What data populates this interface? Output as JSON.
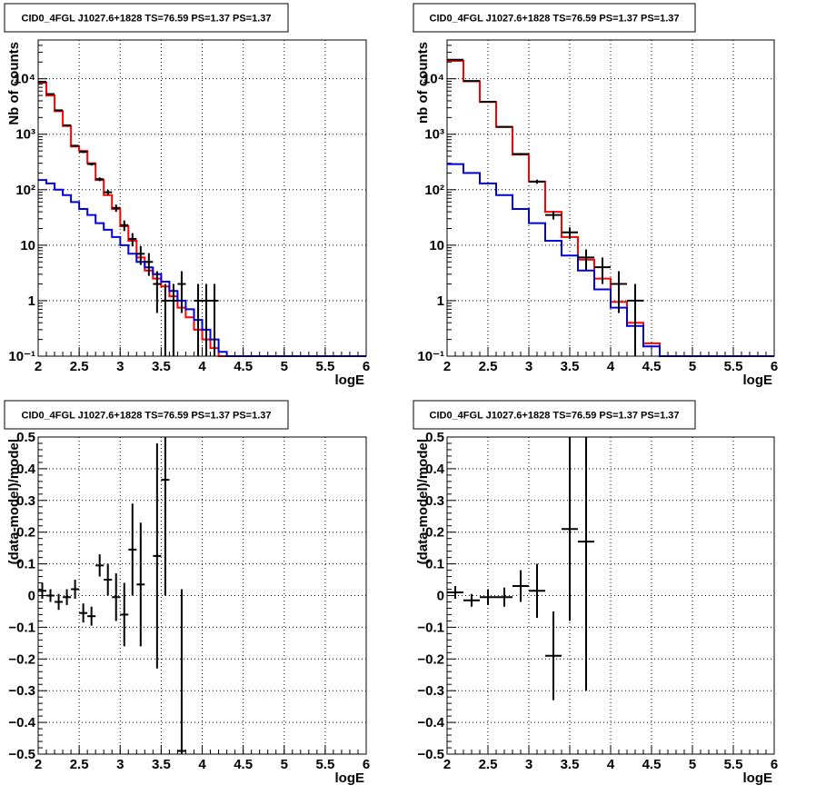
{
  "colors": {
    "total_model": "#ff0000",
    "background_model": "#0000dd",
    "data": "#000000"
  },
  "chart_data": [
    {
      "id": "spectrum-left",
      "type": "line",
      "title": "CID0_4FGL J1027.6+1828 TS=76.59 PS=1.37 PS=1.37",
      "xlabel": "logE",
      "ylabel": "Nb of counts",
      "xlim": [
        2,
        6
      ],
      "ylim": [
        0.1,
        50000
      ],
      "yscale": "log",
      "grid": true,
      "x_ticks": [
        "2",
        "2.5",
        "3",
        "3.5",
        "4",
        "4.5",
        "5",
        "5.5",
        "6"
      ],
      "y_ticks": [
        "10⁻¹",
        "1",
        "10",
        "10²",
        "10³",
        "10⁴"
      ],
      "bin_edges": [
        2.0,
        2.1,
        2.2,
        2.3,
        2.4,
        2.5,
        2.6,
        2.7,
        2.8,
        2.9,
        3.0,
        3.1,
        3.2,
        3.3,
        3.4,
        3.5,
        3.6,
        3.7,
        3.8,
        3.9,
        4.0,
        4.1,
        4.2,
        4.3,
        4.4,
        4.5,
        4.6,
        4.7,
        4.8,
        4.9,
        5.0,
        5.1,
        5.2,
        5.3,
        5.4,
        5.5,
        5.6,
        5.7,
        5.8,
        5.9,
        6.0
      ],
      "series": [
        {
          "key": "total_model",
          "values": [
            8500,
            5000,
            2600,
            1400,
            600,
            500,
            300,
            150,
            80,
            45,
            22,
            12,
            6,
            3.5,
            2.5,
            1.8,
            1.2,
            0.75,
            0.5,
            0.3,
            0.2,
            0.14,
            0.1,
            0.1,
            0.1,
            0.1,
            0.1,
            0.1,
            0.1,
            0.1,
            0.1,
            0.1,
            0.1,
            0.1,
            0.1,
            0.1,
            0.1,
            0.1,
            0.1,
            0.1
          ]
        },
        {
          "key": "background_model",
          "values": [
            150,
            130,
            100,
            80,
            60,
            45,
            35,
            25,
            19,
            14,
            10,
            7,
            5,
            4,
            3,
            2.2,
            1.5,
            1,
            0.7,
            0.45,
            0.3,
            0.2,
            0.12,
            0.1,
            0.1,
            0.1,
            0.1,
            0.1,
            0.1,
            0.1,
            0.1,
            0.1,
            0.1,
            0.1,
            0.1,
            0.1,
            0.1,
            0.1,
            0.1,
            0.1
          ]
        }
      ],
      "points": [
        {
          "x": 2.05,
          "y": 8800,
          "lo": 8600,
          "hi": 9000
        },
        {
          "x": 2.15,
          "y": 5300,
          "lo": 5200,
          "hi": 5400
        },
        {
          "x": 2.25,
          "y": 2700,
          "lo": 2650,
          "hi": 2750
        },
        {
          "x": 2.35,
          "y": 1450,
          "lo": 1410,
          "hi": 1490
        },
        {
          "x": 2.45,
          "y": 620,
          "lo": 595,
          "hi": 645
        },
        {
          "x": 2.55,
          "y": 480,
          "lo": 458,
          "hi": 502
        },
        {
          "x": 2.65,
          "y": 290,
          "lo": 273,
          "hi": 307
        },
        {
          "x": 2.75,
          "y": 155,
          "lo": 143,
          "hi": 167
        },
        {
          "x": 2.85,
          "y": 90,
          "lo": 81,
          "hi": 99
        },
        {
          "x": 2.95,
          "y": 47,
          "lo": 40,
          "hi": 54
        },
        {
          "x": 3.05,
          "y": 23,
          "lo": 18,
          "hi": 28
        },
        {
          "x": 3.15,
          "y": 13,
          "lo": 9.5,
          "hi": 16.5
        },
        {
          "x": 3.25,
          "y": 7,
          "lo": 4.4,
          "hi": 9.6
        },
        {
          "x": 3.35,
          "y": 5,
          "lo": 2.8,
          "hi": 7.2
        },
        {
          "x": 3.45,
          "y": 2,
          "lo": 0.6,
          "hi": 3.4
        },
        {
          "x": 3.55,
          "y": 1,
          "lo": 0.1,
          "hi": 2
        },
        {
          "x": 3.65,
          "y": 1,
          "lo": 0.1,
          "hi": 2
        },
        {
          "x": 3.75,
          "y": 2,
          "lo": 0.6,
          "hi": 3.4
        },
        {
          "x": 3.95,
          "y": 1,
          "lo": 0.1,
          "hi": 2
        },
        {
          "x": 4.05,
          "y": 1,
          "lo": 0.1,
          "hi": 2
        },
        {
          "x": 4.15,
          "y": 1,
          "lo": 0.1,
          "hi": 2
        }
      ]
    },
    {
      "id": "spectrum-right",
      "type": "line",
      "title": "CID0_4FGL J1027.6+1828 TS=76.59 PS=1.37 PS=1.37",
      "xlabel": "logE",
      "ylabel": "nb of counts",
      "xlim": [
        2,
        6
      ],
      "ylim": [
        0.1,
        50000
      ],
      "yscale": "log",
      "grid": true,
      "x_ticks": [
        "2",
        "2.5",
        "3",
        "3.5",
        "4",
        "4.5",
        "5",
        "5.5",
        "6"
      ],
      "y_ticks": [
        "10⁻¹",
        "1",
        "10",
        "10²",
        "10³",
        "10⁴"
      ],
      "bin_edges": [
        2.0,
        2.2,
        2.4,
        2.6,
        2.8,
        3.0,
        3.2,
        3.4,
        3.6,
        3.8,
        4.0,
        4.2,
        4.4,
        4.6,
        4.8,
        5.0,
        5.2,
        5.4,
        5.6,
        5.8,
        6.0
      ],
      "series": [
        {
          "key": "total_model",
          "values": [
            21000,
            9000,
            3800,
            1350,
            430,
            140,
            40,
            14,
            5.5,
            2.5,
            0.95,
            0.4,
            0.17,
            0.1,
            0.1,
            0.1,
            0.1,
            0.1,
            0.1,
            0.1
          ]
        },
        {
          "key": "background_model",
          "values": [
            290,
            200,
            130,
            80,
            45,
            25,
            12,
            6.5,
            3.5,
            1.6,
            0.75,
            0.35,
            0.15,
            0.1,
            0.1,
            0.1,
            0.1,
            0.1,
            0.1,
            0.1
          ]
        }
      ],
      "points": [
        {
          "x": 2.1,
          "y": 22000,
          "lo": 21800,
          "hi": 22200
        },
        {
          "x": 2.3,
          "y": 9100,
          "lo": 8950,
          "hi": 9250
        },
        {
          "x": 2.5,
          "y": 3850,
          "lo": 3770,
          "hi": 3930
        },
        {
          "x": 2.7,
          "y": 1360,
          "lo": 1320,
          "hi": 1400
        },
        {
          "x": 2.9,
          "y": 440,
          "lo": 420,
          "hi": 460
        },
        {
          "x": 3.1,
          "y": 140,
          "lo": 128,
          "hi": 152
        },
        {
          "x": 3.3,
          "y": 35,
          "lo": 29,
          "hi": 41
        },
        {
          "x": 3.5,
          "y": 17,
          "lo": 13,
          "hi": 21
        },
        {
          "x": 3.7,
          "y": 6,
          "lo": 3.6,
          "hi": 8.4
        },
        {
          "x": 3.9,
          "y": 4,
          "lo": 2,
          "hi": 6
        },
        {
          "x": 4.1,
          "y": 2,
          "lo": 0.6,
          "hi": 3.4
        },
        {
          "x": 4.3,
          "y": 1,
          "lo": 0.1,
          "hi": 2
        }
      ]
    },
    {
      "id": "residual-left",
      "type": "scatter",
      "title": "CID0_4FGL J1027.6+1828 TS=76.59 PS=1.37 PS=1.37",
      "xlabel": "logE",
      "ylabel": "(data-model)/model",
      "xlim": [
        2,
        6
      ],
      "ylim": [
        -0.5,
        0.5
      ],
      "grid": true,
      "x_ticks": [
        "2",
        "2.5",
        "3",
        "3.5",
        "4",
        "4.5",
        "5",
        "5.5",
        "6"
      ],
      "y_ticks": [
        "−0.5",
        "−0.4",
        "−0.3",
        "−0.2",
        "−0.1",
        "0",
        "0.1",
        "0.2",
        "0.3",
        "0.4",
        "0.5"
      ],
      "half_width": 0.05,
      "points": [
        {
          "x": 2.05,
          "y": 0.015,
          "lo": -0.01,
          "hi": 0.04
        },
        {
          "x": 2.15,
          "y": 0.0,
          "lo": -0.02,
          "hi": 0.02
        },
        {
          "x": 2.25,
          "y": -0.02,
          "lo": -0.045,
          "hi": 0.005
        },
        {
          "x": 2.35,
          "y": -0.005,
          "lo": -0.03,
          "hi": 0.02
        },
        {
          "x": 2.45,
          "y": 0.02,
          "lo": -0.01,
          "hi": 0.05
        },
        {
          "x": 2.55,
          "y": -0.055,
          "lo": -0.085,
          "hi": -0.025
        },
        {
          "x": 2.65,
          "y": -0.065,
          "lo": -0.095,
          "hi": -0.035
        },
        {
          "x": 2.75,
          "y": 0.095,
          "lo": 0.06,
          "hi": 0.13
        },
        {
          "x": 2.85,
          "y": 0.05,
          "lo": 0.0,
          "hi": 0.1
        },
        {
          "x": 2.95,
          "y": -0.005,
          "lo": -0.08,
          "hi": 0.07
        },
        {
          "x": 3.05,
          "y": -0.06,
          "lo": -0.16,
          "hi": 0.04
        },
        {
          "x": 3.15,
          "y": 0.145,
          "lo": 0.0,
          "hi": 0.29
        },
        {
          "x": 3.25,
          "y": 0.035,
          "lo": -0.16,
          "hi": 0.23
        },
        {
          "x": 3.45,
          "y": 0.125,
          "lo": -0.23,
          "hi": 0.48
        },
        {
          "x": 3.55,
          "y": 0.365,
          "lo": 0.0,
          "hi": 0.5
        },
        {
          "x": 3.75,
          "y": -0.49,
          "lo": -0.5,
          "hi": 0.02
        }
      ]
    },
    {
      "id": "residual-right",
      "type": "scatter",
      "title": "CID0_4FGL J1027.6+1828 TS=76.59 PS=1.37 PS=1.37",
      "xlabel": "logE",
      "ylabel": "(data-model)/model",
      "xlim": [
        2,
        6
      ],
      "ylim": [
        -0.5,
        0.5
      ],
      "grid": true,
      "x_ticks": [
        "2",
        "2.5",
        "3",
        "3.5",
        "4",
        "4.5",
        "5",
        "5.5",
        "6"
      ],
      "y_ticks": [
        "−0.5",
        "−0.4",
        "−0.3",
        "−0.2",
        "−0.1",
        "0",
        "0.1",
        "0.2",
        "0.3",
        "0.4",
        "0.5"
      ],
      "half_width": 0.1,
      "points": [
        {
          "x": 2.1,
          "y": 0.01,
          "lo": -0.01,
          "hi": 0.03
        },
        {
          "x": 2.3,
          "y": -0.015,
          "lo": -0.035,
          "hi": 0.005
        },
        {
          "x": 2.5,
          "y": -0.005,
          "lo": -0.03,
          "hi": 0.02
        },
        {
          "x": 2.7,
          "y": -0.005,
          "lo": -0.035,
          "hi": 0.025
        },
        {
          "x": 2.9,
          "y": 0.03,
          "lo": -0.02,
          "hi": 0.08
        },
        {
          "x": 3.1,
          "y": 0.015,
          "lo": -0.07,
          "hi": 0.1
        },
        {
          "x": 3.3,
          "y": -0.19,
          "lo": -0.33,
          "hi": -0.05
        },
        {
          "x": 3.5,
          "y": 0.21,
          "lo": -0.08,
          "hi": 0.5
        },
        {
          "x": 3.7,
          "y": 0.17,
          "lo": -0.3,
          "hi": 0.5
        }
      ]
    }
  ]
}
